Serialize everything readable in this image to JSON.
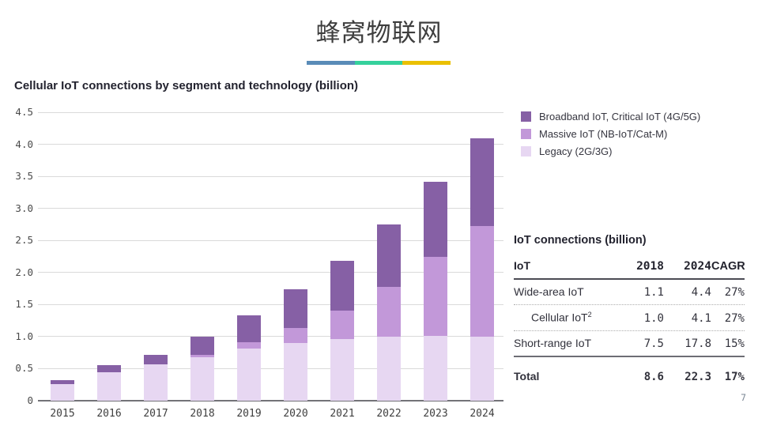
{
  "slide": {
    "title": "蜂窝物联网",
    "page_number": "7",
    "underline_colors": [
      "#5a8cb8",
      "#35d19c",
      "#eac002"
    ]
  },
  "chart": {
    "heading": "Cellular IoT connections by segment and technology (billion)",
    "legend": [
      {
        "label": "Broadband IoT, Critical IoT (4G/5G)",
        "color": "#8660a5"
      },
      {
        "label": "Massive IoT (NB-IoT/Cat-M)",
        "color": "#c298d9"
      },
      {
        "label": "Legacy (2G/3G)",
        "color": "#e7d7f2"
      }
    ]
  },
  "chart_data": {
    "type": "bar",
    "stacked": true,
    "title": "Cellular IoT connections by segment and technology (billion)",
    "xlabel": "",
    "ylabel": "",
    "ylim": [
      0,
      4.5
    ],
    "ytick_step": 0.5,
    "ytick_labels": [
      "0",
      "0.5",
      "1.0",
      "1.5",
      "2.0",
      "2.5",
      "3.0",
      "3.5",
      "4.0",
      "4.5"
    ],
    "grid": true,
    "legend_position": "top-right",
    "categories": [
      "2015",
      "2016",
      "2017",
      "2018",
      "2019",
      "2020",
      "2021",
      "2022",
      "2023",
      "2024"
    ],
    "series": [
      {
        "name": "Legacy (2G/3G)",
        "color": "#e7d7f2",
        "values": [
          0.26,
          0.44,
          0.57,
          0.68,
          0.82,
          0.9,
          0.96,
          1.0,
          1.01,
          1.0
        ]
      },
      {
        "name": "Massive IoT (NB-IoT/Cat-M)",
        "color": "#c298d9",
        "values": [
          0,
          0,
          0,
          0.04,
          0.09,
          0.24,
          0.45,
          0.77,
          1.24,
          1.72
        ]
      },
      {
        "name": "Broadband IoT, Critical IoT (4G/5G)",
        "color": "#8660a5",
        "values": [
          0.06,
          0.12,
          0.15,
          0.28,
          0.42,
          0.6,
          0.77,
          0.98,
          1.17,
          1.38
        ]
      }
    ],
    "totals": [
      0.32,
      0.56,
      0.72,
      1.0,
      1.33,
      1.74,
      2.18,
      2.75,
      3.42,
      4.1
    ]
  },
  "table": {
    "title": "IoT connections (billion)",
    "columns": [
      "IoT",
      "2018",
      "2024",
      "CAGR"
    ],
    "rows": [
      {
        "label": "Wide-area IoT",
        "sup": "",
        "indent": false,
        "bold": false,
        "values": [
          "1.1",
          "4.4",
          "27%"
        ],
        "sep_after": "dotted"
      },
      {
        "label": "Cellular IoT",
        "sup": "2",
        "indent": true,
        "bold": false,
        "values": [
          "1.0",
          "4.1",
          "27%"
        ],
        "sep_after": "dotted"
      },
      {
        "label": "Short-range IoT",
        "sup": "",
        "indent": false,
        "bold": false,
        "values": [
          "7.5",
          "17.8",
          "15%"
        ],
        "sep_after": "solid"
      },
      {
        "label": "Total",
        "sup": "",
        "indent": false,
        "bold": true,
        "values": [
          "8.6",
          "22.3",
          "17%"
        ],
        "sep_after": "none"
      }
    ]
  }
}
